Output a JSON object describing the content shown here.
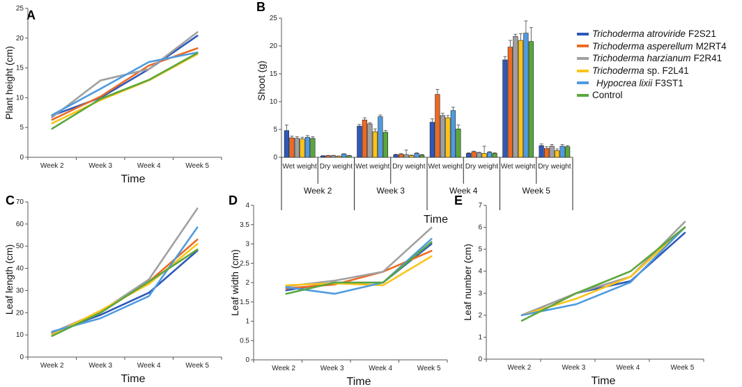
{
  "series": [
    {
      "name": "Trichoderma atroviride",
      "strain": "F2S21",
      "color": "#2e58b9"
    },
    {
      "name": "Trichoderma asperellum",
      "strain": "M2RT4",
      "color": "#ed6a24"
    },
    {
      "name": "Trichoderma harzianum",
      "strain": "F2R41",
      "color": "#a0a0a0"
    },
    {
      "name": "Trichoderma",
      "strain": "sp. F2L41",
      "color": "#fcc419"
    },
    {
      "name": "Hypocrea lixii",
      "strain": "F3ST1",
      "color": "#4f9be0"
    },
    {
      "name": "",
      "strain": "Control",
      "color": "#5aa73d"
    }
  ],
  "chart_data": [
    {
      "id": "A",
      "panel": "A",
      "type": "line",
      "xlabel": "Time",
      "ylabel": "Plant height (cm)",
      "categories": [
        "Week 2",
        "Week 3",
        "Week 4",
        "Week 5"
      ],
      "ylim": [
        0,
        25
      ],
      "yticks": [
        0,
        5,
        10,
        15,
        20,
        25
      ],
      "series": [
        {
          "name": "Trichoderma atroviride F2S21",
          "values": [
            7.0,
            10.0,
            14.8,
            20.4
          ]
        },
        {
          "name": "Trichoderma asperellum M2RT4",
          "values": [
            6.3,
            10.2,
            15.4,
            18.3
          ]
        },
        {
          "name": "Trichoderma harzianum F2R41",
          "values": [
            6.7,
            12.9,
            14.8,
            21.0
          ]
        },
        {
          "name": "Trichoderma sp. F2L41",
          "values": [
            5.7,
            9.6,
            12.9,
            17.3
          ]
        },
        {
          "name": "Hypocrea lixii F3ST1",
          "values": [
            7.1,
            11.5,
            16.0,
            17.6
          ]
        },
        {
          "name": "Control",
          "values": [
            4.8,
            9.8,
            13.0,
            17.5
          ]
        }
      ]
    },
    {
      "id": "B",
      "panel": "B",
      "type": "bar",
      "xlabel": "Time",
      "ylabel": "Shoot (g)",
      "ylim": [
        0,
        25
      ],
      "yticks": [
        0,
        5,
        10,
        15,
        20,
        25
      ],
      "groups": [
        "Week 2",
        "Week 3",
        "Week 4",
        "Week 5"
      ],
      "subcategories": [
        "Wet weight",
        "Dry weight"
      ],
      "series": [
        {
          "name": "Trichoderma atroviride F2S21",
          "values": [
            4.8,
            0.25,
            5.6,
            0.45,
            6.3,
            0.7,
            17.5,
            2.1
          ],
          "errors": [
            1.0,
            0.05,
            0.3,
            0.1,
            0.6,
            0.1,
            0.6,
            0.3
          ]
        },
        {
          "name": "Trichoderma asperellum M2RT4",
          "values": [
            3.5,
            0.3,
            6.7,
            0.55,
            11.3,
            1.0,
            19.8,
            1.6
          ],
          "errors": [
            0.3,
            0.05,
            0.4,
            0.1,
            0.9,
            0.1,
            1.2,
            0.3
          ]
        },
        {
          "name": "Trichoderma harzianum F2R41",
          "values": [
            3.4,
            0.3,
            6.0,
            0.5,
            7.5,
            0.8,
            21.7,
            2.0
          ],
          "errors": [
            0.3,
            0.05,
            0.2,
            0.8,
            0.4,
            0.1,
            0.4,
            0.3
          ]
        },
        {
          "name": "Trichoderma sp. F2L41",
          "values": [
            3.3,
            0.2,
            4.6,
            0.3,
            7.1,
            0.7,
            21.0,
            1.2
          ],
          "errors": [
            0.3,
            0.05,
            0.5,
            0.1,
            0.4,
            1.3,
            1.2,
            0.3
          ]
        },
        {
          "name": "Hypocrea lixii F3ST1",
          "values": [
            3.6,
            0.6,
            7.3,
            0.7,
            8.4,
            0.9,
            22.3,
            2.0
          ],
          "errors": [
            0.3,
            0.05,
            0.3,
            0.1,
            0.6,
            0.1,
            2.2,
            0.3
          ]
        },
        {
          "name": "Control",
          "values": [
            3.4,
            0.3,
            4.5,
            0.4,
            5.1,
            0.7,
            20.8,
            1.9
          ],
          "errors": [
            0.3,
            0.05,
            0.3,
            0.1,
            0.7,
            0.1,
            2.5,
            0.2
          ]
        }
      ]
    },
    {
      "id": "C",
      "panel": "C",
      "type": "line",
      "xlabel": "Time",
      "ylabel": "Leaf length (cm)",
      "categories": [
        "Week 2",
        "Week 3",
        "Week 4",
        "Week 5"
      ],
      "ylim": [
        0,
        70
      ],
      "yticks": [
        0,
        10,
        20,
        30,
        40,
        50,
        60,
        70
      ],
      "series": [
        {
          "name": "Trichoderma atroviride F2S21",
          "values": [
            11.0,
            19.0,
            29.0,
            48.0
          ]
        },
        {
          "name": "Trichoderma asperellum M2RT4",
          "values": [
            10.5,
            20.0,
            34.0,
            53.0
          ]
        },
        {
          "name": "Trichoderma harzianum F2R41",
          "values": [
            11.0,
            20.5,
            35.0,
            67.0
          ]
        },
        {
          "name": "Trichoderma sp. F2L41",
          "values": [
            10.0,
            21.0,
            33.0,
            51.0
          ]
        },
        {
          "name": "Hypocrea lixii F3ST1",
          "values": [
            11.5,
            17.5,
            27.5,
            58.5
          ]
        },
        {
          "name": "Control",
          "values": [
            9.5,
            20.0,
            34.0,
            48.5
          ]
        }
      ]
    },
    {
      "id": "D",
      "panel": "D",
      "type": "line",
      "xlabel": "Time",
      "ylabel": "Leaf width (cm)",
      "categories": [
        "Week 2",
        "Week 3",
        "Week 4",
        "Week 5"
      ],
      "ylim": [
        0,
        4
      ],
      "yticks": [
        0,
        0.5,
        1,
        1.5,
        2,
        2.5,
        3,
        3.5,
        4
      ],
      "series": [
        {
          "name": "Trichoderma atroviride F2S21",
          "values": [
            1.8,
            2.0,
            2.0,
            3.0
          ]
        },
        {
          "name": "Trichoderma asperellum M2RT4",
          "values": [
            1.85,
            1.95,
            2.28,
            2.82
          ]
        },
        {
          "name": "Trichoderma harzianum F2R41",
          "values": [
            1.9,
            2.05,
            2.28,
            3.42
          ]
        },
        {
          "name": "Trichoderma sp. F2L41",
          "values": [
            1.93,
            1.98,
            1.93,
            2.68
          ]
        },
        {
          "name": "Hypocrea lixii F3ST1",
          "values": [
            1.88,
            1.71,
            2.0,
            3.13
          ]
        },
        {
          "name": "Control",
          "values": [
            1.71,
            2.0,
            2.0,
            3.05
          ]
        }
      ]
    },
    {
      "id": "E",
      "panel": "E",
      "type": "line",
      "xlabel": "Time",
      "ylabel": "Leaf number (cm)",
      "categories": [
        "Week 2",
        "Week 3",
        "Week 4",
        "Week 5"
      ],
      "ylim": [
        0,
        7
      ],
      "yticks": [
        0,
        1,
        2,
        3,
        4,
        5,
        6,
        7
      ],
      "series": [
        {
          "name": "Trichoderma atroviride F2S21",
          "values": [
            2.0,
            3.0,
            3.55,
            5.75
          ]
        },
        {
          "name": "Trichoderma asperellum M2RT4",
          "values": [
            2.0,
            3.0,
            3.75,
            6.0
          ]
        },
        {
          "name": "Trichoderma harzianum F2R41",
          "values": [
            2.0,
            3.0,
            3.75,
            6.25
          ]
        },
        {
          "name": "Trichoderma sp. F2L41",
          "values": [
            2.0,
            2.75,
            3.75,
            6.0
          ]
        },
        {
          "name": "Hypocrea lixii F3ST1",
          "values": [
            2.0,
            2.5,
            3.5,
            6.0
          ]
        },
        {
          "name": "Control",
          "values": [
            1.75,
            3.0,
            4.0,
            6.0
          ]
        }
      ]
    }
  ]
}
